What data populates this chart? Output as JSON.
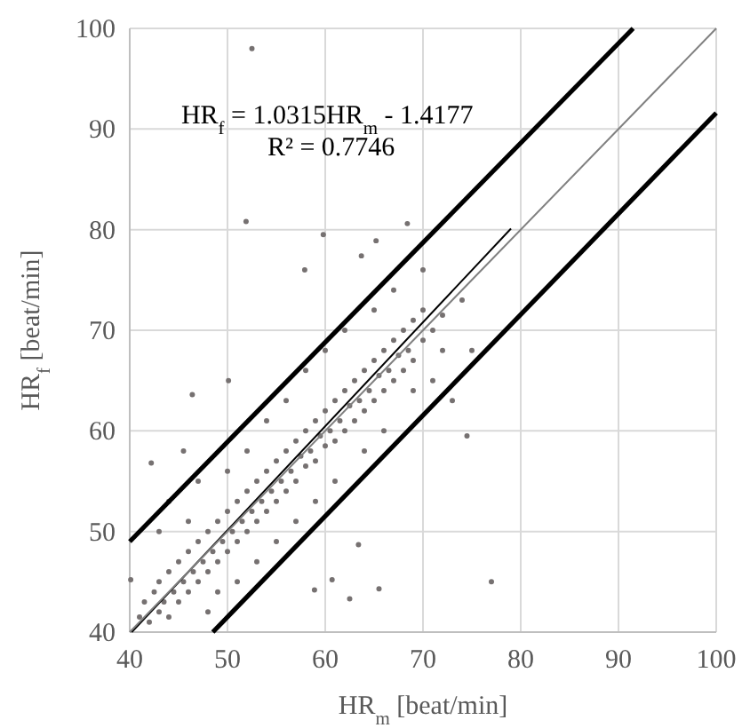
{
  "chart_data": {
    "type": "scatter",
    "xlabel": "HR$_{m}$ [beat/min]",
    "ylabel": "HR$_{f}$ [beat/min]",
    "annotations": [
      "HR$_{f}$ = 1.0315HR$_{m}$ - 1.4177",
      "R² = 0.7746"
    ],
    "xlim": [
      40,
      100
    ],
    "ylim": [
      40,
      100
    ],
    "xticks": [
      40,
      50,
      60,
      70,
      80,
      90,
      100
    ],
    "yticks": [
      40,
      50,
      60,
      70,
      80,
      90,
      100
    ],
    "grid": true,
    "marker": "circle",
    "series": [
      {
        "color": "#767171",
        "x": [
          41,
          41.5,
          42,
          42.5,
          43,
          43,
          43.5,
          44,
          44,
          44.5,
          45,
          45,
          45.5,
          46,
          46,
          46.5,
          47,
          47,
          47.5,
          48,
          48,
          48.5,
          49,
          49,
          49.5,
          50,
          50,
          50.5,
          51,
          51,
          51.5,
          52,
          52,
          52.5,
          53,
          53,
          53.5,
          54,
          54,
          54.5,
          55,
          55,
          55.5,
          56,
          56,
          56.5,
          57,
          57,
          57.5,
          58,
          58,
          58.5,
          59,
          59,
          59.5,
          60,
          60,
          60.5,
          61,
          61,
          61.5,
          62,
          62,
          62.5,
          63,
          63,
          63.5,
          64,
          64,
          64.5,
          65,
          65,
          65.5,
          66,
          66,
          66.5,
          67,
          67,
          67.5,
          68,
          68,
          68.5,
          69,
          69,
          70,
          70,
          71,
          72,
          43,
          44,
          46,
          47,
          48,
          49,
          50,
          51,
          52,
          53,
          54,
          55,
          56,
          57,
          58,
          59,
          60,
          61,
          62,
          64,
          65,
          66,
          67,
          69,
          70,
          71,
          72,
          74,
          75,
          51.9,
          46.4,
          50.1,
          59.8,
          65.2,
          68.4,
          63.7,
          57.9,
          42.2,
          45.5,
          63.4,
          65.5,
          62.5,
          60.7,
          58.9,
          40.1,
          52.5,
          77,
          74.5,
          73
        ],
        "values": [
          41.5,
          43,
          41,
          44,
          42,
          45,
          43,
          41.5,
          46,
          44,
          43,
          47,
          45,
          44,
          48,
          46,
          45,
          49,
          47,
          46,
          50,
          48,
          47,
          51,
          49,
          48,
          52,
          50,
          49,
          53,
          51,
          50,
          54,
          52,
          51,
          55,
          53,
          52,
          56,
          54,
          53,
          57,
          55,
          54,
          58,
          56,
          55,
          59,
          57.5,
          56.5,
          60,
          58,
          57,
          61,
          59.5,
          58.5,
          62,
          60,
          59,
          63,
          61,
          60,
          64,
          62.5,
          61,
          65,
          63,
          62,
          66,
          64,
          63,
          67,
          65.5,
          64,
          68,
          66,
          65,
          69,
          67.5,
          66,
          70,
          68,
          67,
          71,
          69,
          72,
          70,
          71.5,
          50,
          53,
          51,
          55,
          42,
          44,
          56,
          45,
          58,
          47,
          61,
          49,
          63,
          51,
          66,
          53,
          68,
          55,
          70,
          58,
          72,
          60,
          74,
          64,
          76,
          65,
          68,
          73,
          68,
          80.8,
          63.6,
          65,
          79.5,
          78.9,
          80.6,
          77.4,
          76,
          56.8,
          58,
          48.7,
          44.3,
          43.3,
          45.2,
          44.2,
          45.2,
          98,
          45,
          59.5,
          63
        ]
      },
      {
        "type": "line",
        "color": "#000000",
        "marker": "none",
        "x": [
          40.2,
          79
        ],
        "values": [
          40,
          80.1
        ]
      },
      {
        "type": "line",
        "color": "#808080",
        "marker": "none",
        "x": [
          40,
          100
        ],
        "values": [
          40,
          100
        ]
      },
      {
        "type": "line",
        "color": "#000000",
        "marker": "none",
        "x": [
          40,
          91.5
        ],
        "values": [
          49,
          100
        ]
      },
      {
        "type": "line",
        "color": "#000000",
        "marker": "none",
        "x": [
          48.5,
          100
        ],
        "values": [
          40,
          91.6
        ]
      }
    ]
  }
}
